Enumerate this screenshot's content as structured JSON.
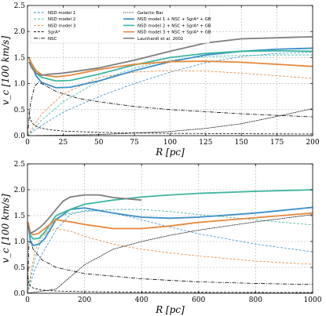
{
  "chart_data": [
    {
      "type": "line",
      "panel": "top",
      "xlabel": "R [pc]",
      "ylabel": "v_c [100 km/s]",
      "xlim": [
        0,
        200
      ],
      "ylim": [
        0,
        2.5
      ],
      "xticks": [
        "0",
        "25",
        "50",
        "75",
        "100",
        "125",
        "150",
        "175",
        "200"
      ],
      "yticks": [
        "0.0",
        "0.5",
        "1.0",
        "1.5",
        "2.0",
        "2.5"
      ],
      "grid": true,
      "legend_position": "top-left",
      "series": [
        {
          "name": "NSD model 1",
          "color": "#3c8fc8",
          "style": "dashed",
          "width": 0.8,
          "x": [
            0,
            10,
            25,
            50,
            75,
            100,
            125,
            150,
            175,
            200
          ],
          "y": [
            0.0,
            0.2,
            0.45,
            0.75,
            1.0,
            1.22,
            1.4,
            1.52,
            1.58,
            1.6
          ]
        },
        {
          "name": "NSD model 2",
          "color": "#3cb6a0",
          "style": "dashed",
          "width": 0.8,
          "x": [
            0,
            10,
            25,
            50,
            75,
            100,
            125,
            150,
            175,
            200
          ],
          "y": [
            0.0,
            0.3,
            0.65,
            1.05,
            1.3,
            1.45,
            1.52,
            1.54,
            1.55,
            1.55
          ]
        },
        {
          "name": "NSD model 3",
          "color": "#e6873a",
          "style": "dashed",
          "width": 0.8,
          "x": [
            0,
            10,
            25,
            50,
            75,
            100,
            125,
            150,
            175,
            200
          ],
          "y": [
            0.0,
            0.42,
            0.8,
            1.12,
            1.22,
            1.25,
            1.24,
            1.2,
            1.15,
            1.1
          ]
        },
        {
          "name": "SgrA*",
          "color": "#000000",
          "style": "dashed",
          "width": 0.8,
          "x": [
            1,
            2,
            4,
            8,
            15,
            25,
            50,
            75,
            100,
            150,
            200
          ],
          "y": [
            0.44,
            0.31,
            0.22,
            0.155,
            0.115,
            0.088,
            0.062,
            0.051,
            0.044,
            0.036,
            0.031
          ]
        },
        {
          "name": "NSC",
          "color": "#000000",
          "style": "dashdot",
          "width": 0.8,
          "x": [
            0,
            2,
            5,
            8,
            12,
            20,
            35,
            50,
            75,
            100,
            150,
            200
          ],
          "y": [
            0.0,
            0.6,
            0.95,
            1.03,
            0.97,
            0.85,
            0.72,
            0.65,
            0.56,
            0.5,
            0.42,
            0.36
          ]
        },
        {
          "name": "Galactic Bar",
          "color": "#000000",
          "style": "dotted",
          "width": 0.8,
          "x": [
            0,
            50,
            100,
            125,
            150,
            175,
            200
          ],
          "y": [
            0.0,
            0.02,
            0.08,
            0.14,
            0.23,
            0.37,
            0.52
          ]
        },
        {
          "name": "NSD model 1 + NSC + SgrA* + GB",
          "color": "#3c8fc8",
          "style": "solid",
          "width": 1.8,
          "x": [
            1,
            3,
            6,
            10,
            20,
            30,
            50,
            75,
            100,
            125,
            150,
            175,
            200
          ],
          "y": [
            1.5,
            1.35,
            1.15,
            1.02,
            0.92,
            0.93,
            1.05,
            1.25,
            1.42,
            1.55,
            1.62,
            1.66,
            1.68
          ]
        },
        {
          "name": "NSD model 2 + NSC + SgrA* + GB",
          "color": "#3cb6a0",
          "style": "solid",
          "width": 1.8,
          "x": [
            1,
            3,
            6,
            10,
            20,
            30,
            50,
            75,
            100,
            125,
            150,
            175,
            200
          ],
          "y": [
            1.5,
            1.36,
            1.2,
            1.12,
            1.05,
            1.06,
            1.18,
            1.36,
            1.5,
            1.58,
            1.62,
            1.63,
            1.62
          ]
        },
        {
          "name": "NSD model 3 + NSC + SgrA* + GB",
          "color": "#e6873a",
          "style": "solid",
          "width": 1.8,
          "x": [
            1,
            3,
            6,
            10,
            20,
            30,
            50,
            75,
            100,
            125,
            150,
            175,
            200
          ],
          "y": [
            1.5,
            1.38,
            1.25,
            1.17,
            1.13,
            1.16,
            1.27,
            1.37,
            1.42,
            1.43,
            1.41,
            1.37,
            1.33
          ]
        },
        {
          "name": "Launhardt et al. 2002",
          "color": "#7f7f7f",
          "style": "solid",
          "width": 1.8,
          "x": [
            1,
            3,
            6,
            10,
            15,
            25,
            50,
            75,
            100,
            125,
            150,
            175,
            200
          ],
          "y": [
            1.42,
            1.3,
            1.2,
            1.16,
            1.18,
            1.2,
            1.3,
            1.45,
            1.62,
            1.78,
            1.86,
            1.88,
            1.9
          ]
        }
      ],
      "legend": [
        {
          "name": "NSD model 1",
          "color": "#3c8fc8",
          "style": "dashed"
        },
        {
          "name": "NSD model 2",
          "color": "#3cb6a0",
          "style": "dashed"
        },
        {
          "name": "NSD model 3",
          "color": "#e6873a",
          "style": "dashed"
        },
        {
          "name": "SgrA*",
          "color": "#000000",
          "style": "dashed"
        },
        {
          "name": "NSC",
          "color": "#000000",
          "style": "dashdot"
        },
        {
          "name": "Galactic Bar",
          "color": "#000000",
          "style": "dotted"
        },
        {
          "name": "NSD model 1 + NSC + SgrA* + GB",
          "color": "#3c8fc8",
          "style": "solid"
        },
        {
          "name": "NSD model 2 + NSC + SgrA* + GB",
          "color": "#3cb6a0",
          "style": "solid"
        },
        {
          "name": "NSD model 3 + NSC + SgrA* + GB",
          "color": "#e6873a",
          "style": "solid"
        },
        {
          "name": "Launhardt et al. 2002",
          "color": "#7f7f7f",
          "style": "solid"
        }
      ]
    },
    {
      "type": "line",
      "panel": "bottom",
      "xlabel": "R [pc]",
      "ylabel": "v_c [100 km/s]",
      "xlim": [
        0,
        1000
      ],
      "ylim": [
        0,
        2.5
      ],
      "xticks": [
        "0",
        "200",
        "400",
        "600",
        "800",
        "1000"
      ],
      "yticks": [
        "0.0",
        "0.5",
        "1.0",
        "1.5",
        "2.0",
        "2.5"
      ],
      "grid": true,
      "series": [
        {
          "name": "NSD model 1",
          "color": "#3c8fc8",
          "style": "dashed",
          "width": 0.8,
          "x": [
            0,
            25,
            50,
            100,
            150,
            200,
            250,
            300,
            400,
            500,
            600,
            800,
            1000
          ],
          "y": [
            0.0,
            0.45,
            0.75,
            1.22,
            1.52,
            1.6,
            1.59,
            1.55,
            1.42,
            1.28,
            1.15,
            0.95,
            0.8
          ]
        },
        {
          "name": "NSD model 2",
          "color": "#3cb6a0",
          "style": "dashed",
          "width": 0.8,
          "x": [
            0,
            25,
            50,
            100,
            150,
            200,
            250,
            300,
            400,
            500,
            600,
            800,
            1000
          ],
          "y": [
            0.0,
            0.65,
            1.05,
            1.45,
            1.55,
            1.58,
            1.6,
            1.62,
            1.62,
            1.58,
            1.52,
            1.42,
            1.32
          ]
        },
        {
          "name": "NSD model 3",
          "color": "#e6873a",
          "style": "dashed",
          "width": 0.8,
          "x": [
            0,
            25,
            50,
            100,
            150,
            200,
            300,
            400,
            500,
            600,
            800,
            1000
          ],
          "y": [
            0.0,
            0.8,
            1.12,
            1.25,
            1.2,
            1.1,
            0.95,
            0.85,
            0.78,
            0.72,
            0.62,
            0.56
          ]
        },
        {
          "name": "SgrA*",
          "color": "#000000",
          "style": "dashed",
          "width": 0.8,
          "x": [
            2,
            5,
            10,
            20,
            50,
            100,
            200,
            400,
            600,
            800,
            1000
          ],
          "y": [
            0.31,
            0.2,
            0.14,
            0.1,
            0.062,
            0.044,
            0.031,
            0.022,
            0.018,
            0.016,
            0.014
          ]
        },
        {
          "name": "NSC",
          "color": "#000000",
          "style": "dashdot",
          "width": 0.8,
          "x": [
            0,
            5,
            10,
            20,
            50,
            100,
            200,
            400,
            600,
            800,
            1000
          ],
          "y": [
            0.0,
            0.95,
            1.0,
            0.85,
            0.65,
            0.5,
            0.38,
            0.28,
            0.22,
            0.19,
            0.17
          ]
        },
        {
          "name": "Galactic Bar",
          "color": "#000000",
          "style": "dotted",
          "width": 0.8,
          "x": [
            0,
            100,
            200,
            300,
            400,
            500,
            600,
            700,
            800,
            900,
            1000
          ],
          "y": [
            0.0,
            0.08,
            0.55,
            0.85,
            1.0,
            1.12,
            1.22,
            1.3,
            1.38,
            1.45,
            1.52
          ]
        },
        {
          "name": "NSD model 1 + NSC + SgrA* + GB",
          "color": "#3c8fc8",
          "style": "solid",
          "width": 1.8,
          "x": [
            2,
            10,
            20,
            40,
            60,
            100,
            150,
            200,
            300,
            400,
            500,
            600,
            800,
            1000
          ],
          "y": [
            1.35,
            1.02,
            0.92,
            0.95,
            1.05,
            1.42,
            1.62,
            1.65,
            1.55,
            1.47,
            1.45,
            1.47,
            1.55,
            1.66
          ]
        },
        {
          "name": "NSD model 2 + NSC + SgrA* + GB",
          "color": "#3cb6a0",
          "style": "solid",
          "width": 1.8,
          "x": [
            2,
            10,
            20,
            40,
            60,
            100,
            150,
            200,
            300,
            400,
            500,
            600,
            800,
            1000
          ],
          "y": [
            1.36,
            1.12,
            1.05,
            1.06,
            1.18,
            1.5,
            1.62,
            1.72,
            1.8,
            1.86,
            1.9,
            1.93,
            1.97,
            2.0
          ]
        },
        {
          "name": "NSD model 3 + NSC + SgrA* + GB",
          "color": "#e6873a",
          "style": "solid",
          "width": 1.8,
          "x": [
            2,
            10,
            20,
            40,
            60,
            100,
            150,
            200,
            300,
            400,
            500,
            600,
            800,
            1000
          ],
          "y": [
            1.38,
            1.17,
            1.13,
            1.16,
            1.25,
            1.42,
            1.38,
            1.33,
            1.25,
            1.25,
            1.3,
            1.37,
            1.46,
            1.55
          ]
        },
        {
          "name": "Launhardt et al. 2002",
          "color": "#7f7f7f",
          "style": "solid",
          "width": 1.8,
          "x": [
            2,
            10,
            25,
            50,
            75,
            100,
            125,
            150,
            200,
            250,
            300,
            400
          ],
          "y": [
            1.3,
            1.16,
            1.2,
            1.3,
            1.45,
            1.62,
            1.78,
            1.86,
            1.9,
            1.9,
            1.85,
            1.8
          ]
        }
      ]
    }
  ]
}
